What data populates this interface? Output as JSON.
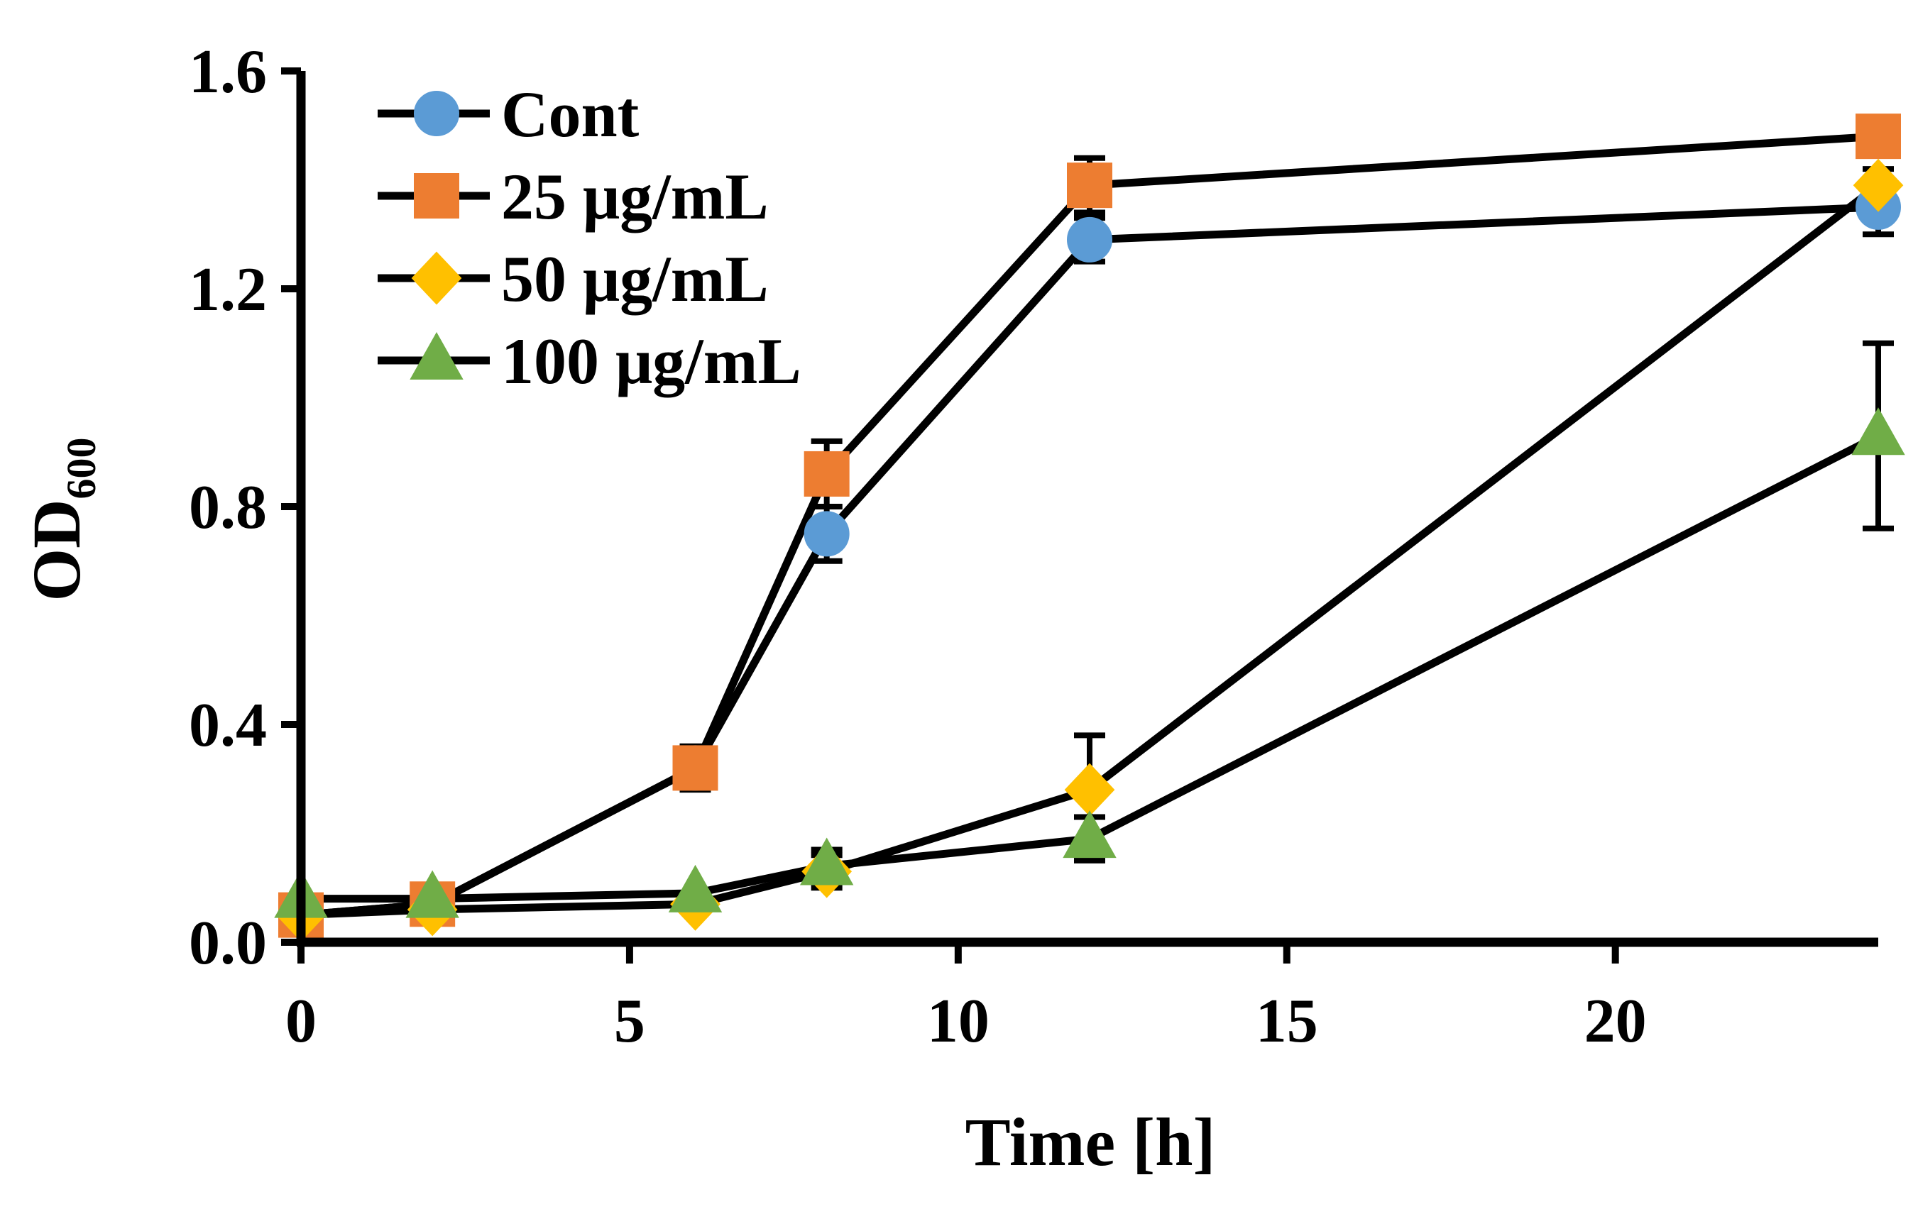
{
  "chart_data": {
    "type": "line",
    "title": "",
    "xlabel": "Time  [h]",
    "ylabel_main": "OD",
    "ylabel_sub": "600",
    "xlim": [
      0,
      24
    ],
    "ylim": [
      0,
      1.6
    ],
    "x_ticks": [
      0,
      5,
      10,
      15,
      20
    ],
    "x_tick_labels": [
      "0",
      "5",
      "10",
      "15",
      "20"
    ],
    "y_ticks": [
      0,
      0.4,
      0.8,
      1.2,
      1.6
    ],
    "y_tick_labels": [
      "0.0",
      "0.4",
      "0.8",
      "1.2",
      "1.6"
    ],
    "legend_position": "top-left",
    "series": [
      {
        "name": "Cont",
        "marker": "circle",
        "color": "#5B9BD5",
        "x": [
          0,
          2,
          6,
          8,
          12,
          24
        ],
        "y": [
          0.05,
          0.07,
          0.32,
          0.75,
          1.29,
          1.35
        ],
        "err": [
          0.01,
          0.01,
          0.03,
          0.05,
          0.04,
          0.05
        ]
      },
      {
        "name": "25 μg/mL",
        "marker": "square",
        "color": "#ED7D31",
        "x": [
          0,
          2,
          6,
          8,
          12,
          24
        ],
        "y": [
          0.05,
          0.07,
          0.32,
          0.86,
          1.39,
          1.48
        ],
        "err": [
          0.01,
          0.01,
          0.04,
          0.06,
          0.05,
          0.02
        ]
      },
      {
        "name": "50 μg/mL",
        "marker": "diamond",
        "color": "#FFC000",
        "x": [
          0,
          2,
          6,
          8,
          12,
          24
        ],
        "y": [
          0.05,
          0.06,
          0.07,
          0.13,
          0.28,
          1.39
        ],
        "err": [
          0.01,
          0.01,
          0.01,
          0.03,
          0.1,
          0.03
        ]
      },
      {
        "name": "100 μg/mL",
        "marker": "triangle",
        "color": "#70AD47",
        "x": [
          0,
          2,
          6,
          8,
          12,
          24
        ],
        "y": [
          0.08,
          0.08,
          0.09,
          0.14,
          0.19,
          0.93
        ],
        "err": [
          0.01,
          0.01,
          0.01,
          0.03,
          0.04,
          0.17
        ]
      }
    ]
  }
}
